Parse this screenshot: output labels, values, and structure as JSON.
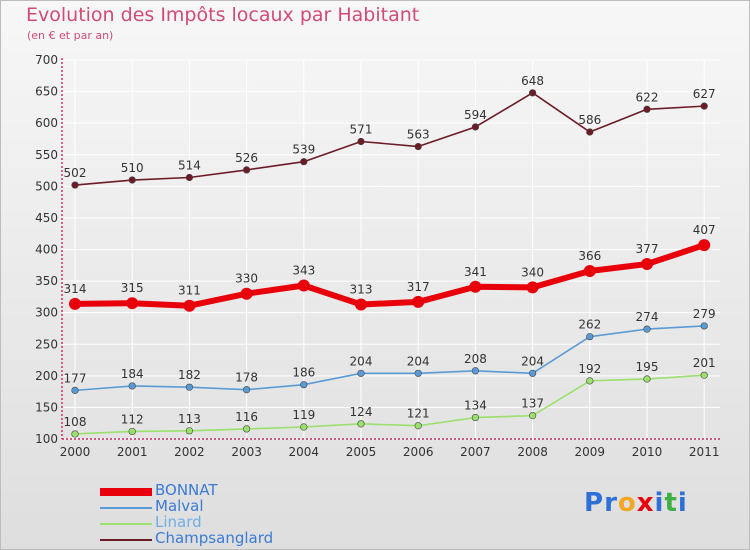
{
  "header": {
    "title": "Evolution des Impôts locaux par Habitant",
    "subtitle": "(en € et par an)"
  },
  "colors": {
    "title": "#d14b76",
    "axis": "#c8004a",
    "grid": "#ffffff"
  },
  "chart_data": {
    "type": "line",
    "title": "Evolution des Impôts locaux par Habitant",
    "subtitle": "(en € et par an)",
    "xlabel": "",
    "ylabel": "",
    "categories": [
      "2000",
      "2001",
      "2002",
      "2003",
      "2004",
      "2005",
      "2006",
      "2007",
      "2008",
      "2009",
      "2010",
      "2011"
    ],
    "ylim": [
      100,
      700
    ],
    "yticks": [
      100,
      150,
      200,
      250,
      300,
      350,
      400,
      450,
      500,
      550,
      600,
      650,
      700
    ],
    "grid": true,
    "legend_position": "bottom-left",
    "series": [
      {
        "name": "BONNAT",
        "color": "#e8000b",
        "values": [
          314,
          315,
          311,
          330,
          343,
          313,
          317,
          341,
          340,
          366,
          377,
          407
        ]
      },
      {
        "name": "Malval",
        "color": "#5b9bd5",
        "values": [
          177,
          184,
          182,
          178,
          186,
          204,
          204,
          208,
          204,
          262,
          274,
          279
        ]
      },
      {
        "name": "Linard",
        "color": "#9ae06b",
        "values": [
          108,
          112,
          113,
          116,
          119,
          124,
          121,
          134,
          137,
          192,
          195,
          201
        ]
      },
      {
        "name": "Champsanglard",
        "color": "#6b1c25",
        "values": [
          502,
          510,
          514,
          526,
          539,
          571,
          563,
          594,
          648,
          586,
          622,
          627
        ]
      }
    ]
  },
  "logo": {
    "letters": [
      "P",
      "r",
      "o",
      "x",
      "i",
      "t",
      "i"
    ],
    "colors": [
      "#2e6fd8",
      "#2e6fd8",
      "#f5a623",
      "#e8000b",
      "#2e6fd8",
      "#3cb043",
      "#2e6fd8"
    ]
  }
}
